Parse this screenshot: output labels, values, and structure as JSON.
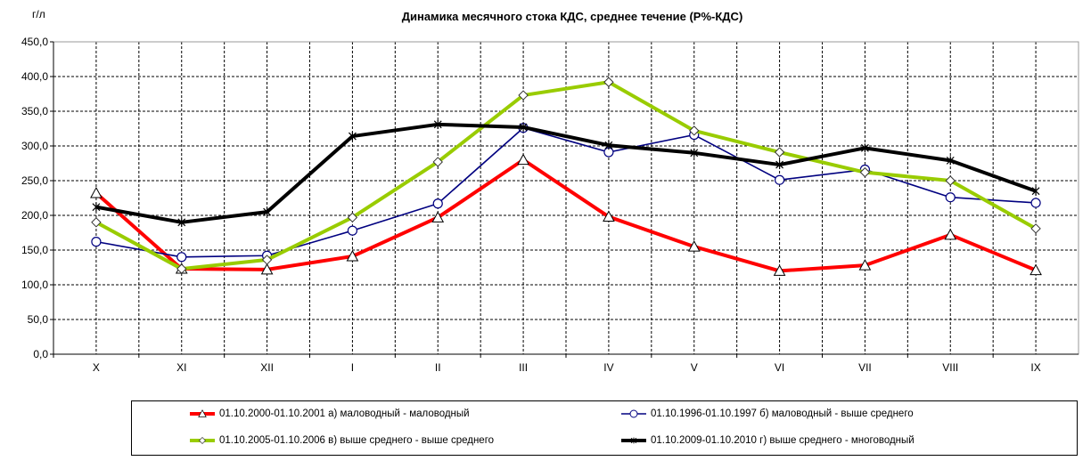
{
  "chart_data": {
    "type": "line",
    "title": "Динамика месячного стока КДС, среднее течение (Р%-КДС)",
    "ylabel": "г/л",
    "xlabel": "",
    "ylim": [
      0,
      450
    ],
    "yticks": [
      "0,0",
      "50,0",
      "100,0",
      "150,0",
      "200,0",
      "250,0",
      "300,0",
      "350,0",
      "400,0",
      "450,0"
    ],
    "grid": true,
    "legend_position": "bottom",
    "categories": [
      "X",
      "XI",
      "XII",
      "I",
      "II",
      "III",
      "IV",
      "V",
      "VI",
      "VII",
      "VIII",
      "IX"
    ],
    "series": [
      {
        "name": "01.10.2000-01.10.2001 а) маловодный - маловодный",
        "color": "#ff0000",
        "marker": "triangle",
        "values": [
          232,
          123,
          122,
          141,
          197,
          280,
          198,
          155,
          120,
          128,
          172,
          121
        ]
      },
      {
        "name": "01.10.1996-01.10.1997 б) маловодный - выше среднего",
        "color": "#000080",
        "marker": "circle",
        "values": [
          162,
          140,
          142,
          178,
          217,
          326,
          291,
          316,
          251,
          266,
          226,
          218
        ]
      },
      {
        "name": "01.10.2005-01.10.2006 в) выше среднего - выше среднего",
        "color": "#99cc00",
        "marker": "diamond",
        "values": [
          190,
          123,
          136,
          197,
          277,
          373,
          392,
          322,
          291,
          262,
          250,
          181
        ]
      },
      {
        "name": "01.10.2009-01.10.2010 г) выше среднего - многоводный",
        "color": "#000000",
        "marker": "star",
        "values": [
          212,
          190,
          205,
          314,
          331,
          327,
          301,
          290,
          273,
          297,
          279,
          235
        ]
      }
    ]
  }
}
